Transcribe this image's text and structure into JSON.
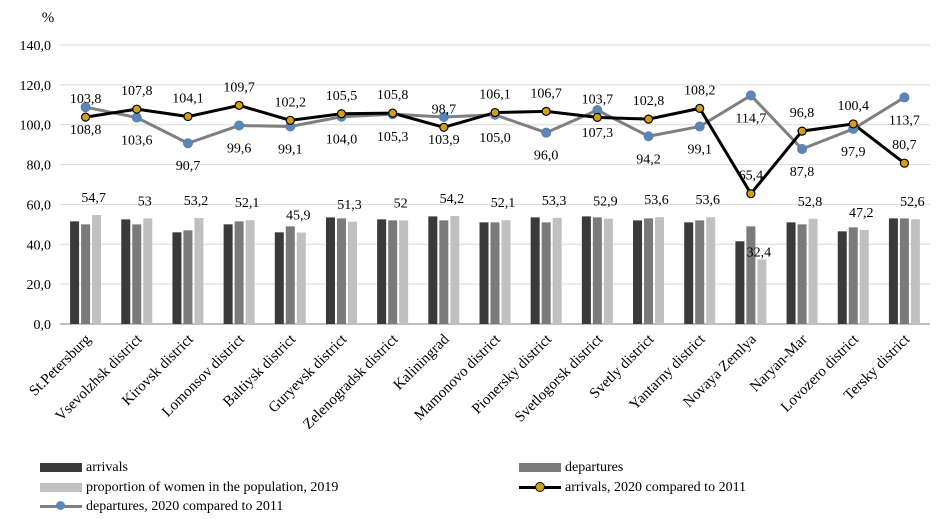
{
  "chart_data": {
    "type": "bar",
    "ylabel": "%",
    "ylim": [
      0,
      140
    ],
    "yticks": [
      "0,0",
      "20,0",
      "40,0",
      "60,0",
      "80,0",
      "100,0",
      "120,0",
      "140,0"
    ],
    "grid": true,
    "legend_position": "bottom",
    "categories": [
      "St.Petersburg",
      "Vsevolzhsk district",
      "Kirovsk district",
      "Lomonsov district",
      "Baltiysk district",
      "Guryevsk district",
      "Zelenogradsk district",
      "Kaliningrad",
      "Mamonovo district",
      "Pionersky district",
      "Svetlogorsk district",
      "Svetly district",
      "Yantarny district",
      "Novaya Zemlya",
      "Naryan-Mar",
      "Lovozero district",
      "Tersky district"
    ],
    "series": [
      {
        "name": "arrivals",
        "type": "bar",
        "color": "#3a3a3a",
        "values": [
          51.5,
          52.5,
          46.0,
          50.0,
          46.0,
          53.5,
          52.5,
          54.0,
          51.0,
          53.5,
          54.0,
          52.0,
          51.0,
          41.5,
          51.0,
          46.5,
          53.0
        ]
      },
      {
        "name": "departures",
        "type": "bar",
        "color": "#7a7a7a",
        "values": [
          50.0,
          50.0,
          47.0,
          51.5,
          49.0,
          53.0,
          52.0,
          52.0,
          51.0,
          51.0,
          53.5,
          53.0,
          52.0,
          49.0,
          50.0,
          48.5,
          53.0
        ]
      },
      {
        "name": "proportion of women in the population, 2019",
        "type": "bar",
        "color": "#c0c0c0",
        "values": [
          54.7,
          53,
          53.2,
          52.1,
          45.9,
          51.3,
          52,
          54.2,
          52.1,
          53.3,
          52.9,
          53.6,
          53.6,
          32.4,
          52.8,
          47.2,
          52.6
        ],
        "labels": [
          "54,7",
          "53",
          "53,2",
          "52,1",
          "45,9",
          "51,3",
          "52",
          "54,2",
          "52,1",
          "53,3",
          "52,9",
          "53,6",
          "53,6",
          "32,4",
          "52,8",
          "47,2",
          "52,6"
        ]
      },
      {
        "name": "arrivals, 2020 compared to 2011",
        "type": "line",
        "color": "#000000",
        "marker_color": "#d4a017",
        "values": [
          103.8,
          107.8,
          104.1,
          109.7,
          102.2,
          105.5,
          105.8,
          98.7,
          106.1,
          106.7,
          103.7,
          102.8,
          108.2,
          65.4,
          96.8,
          100.4,
          80.7
        ],
        "labels": [
          "103,8",
          "107,8",
          "104,1",
          "109,7",
          "102,2",
          "105,5",
          "105,8",
          "98,7",
          "106,1",
          "106,7",
          "103,7",
          "102,8",
          "108,2",
          "65,4",
          "96,8",
          "100,4",
          "80,7"
        ]
      },
      {
        "name": "departures, 2020 compared to 2011",
        "type": "line",
        "color": "#7f7f7f",
        "marker_color": "#5b86b8",
        "values": [
          108.8,
          103.6,
          90.7,
          99.6,
          99.1,
          104.0,
          105.3,
          103.9,
          105.0,
          96.0,
          107.3,
          94.2,
          99.1,
          114.7,
          87.8,
          97.9,
          113.7
        ],
        "labels": [
          "108,8",
          "103,6",
          "90,7",
          "99,6",
          "99,1",
          "104,0",
          "105,3",
          "103,9",
          "105,0",
          "96,0",
          "107,3",
          "94,2",
          "99,1",
          "114,7",
          "87,8",
          "97,9",
          "113,7"
        ]
      }
    ]
  }
}
